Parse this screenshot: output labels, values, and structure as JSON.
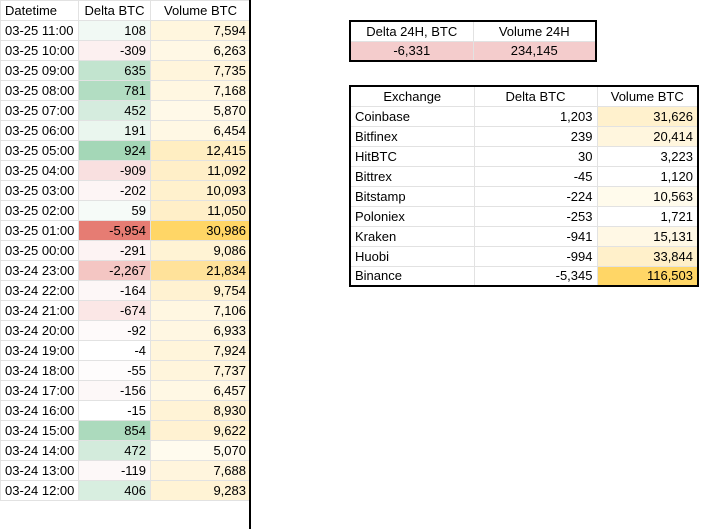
{
  "main": {
    "headers": [
      "Datetime",
      "Delta BTC",
      "Volume BTC"
    ],
    "rows": [
      {
        "datetime": "03-25 11:00",
        "delta": "108",
        "volume": "7,594",
        "delta_bg": "#f1f9f4",
        "volume_bg": "#fff6de"
      },
      {
        "datetime": "03-25 10:00",
        "delta": "-309",
        "volume": "6,263",
        "delta_bg": "#fcf0f0",
        "volume_bg": "#fff8e5"
      },
      {
        "datetime": "03-25 09:00",
        "delta": "635",
        "volume": "7,735",
        "delta_bg": "#c2e4cf",
        "volume_bg": "#fff5dc"
      },
      {
        "datetime": "03-25 08:00",
        "delta": "781",
        "volume": "7,168",
        "delta_bg": "#b2ddc2",
        "volume_bg": "#fff7e1"
      },
      {
        "datetime": "03-25 07:00",
        "delta": "452",
        "volume": "5,870",
        "delta_bg": "#d5ecde",
        "volume_bg": "#fff9e8"
      },
      {
        "datetime": "03-25 06:00",
        "delta": "191",
        "volume": "6,454",
        "delta_bg": "#eaf6ee",
        "volume_bg": "#fff8e4"
      },
      {
        "datetime": "03-25 05:00",
        "delta": "924",
        "volume": "12,415",
        "delta_bg": "#a4d7b7",
        "volume_bg": "#ffeec2"
      },
      {
        "datetime": "03-25 04:00",
        "delta": "-909",
        "volume": "11,092",
        "delta_bg": "#f9e0e0",
        "volume_bg": "#ffefc8"
      },
      {
        "datetime": "03-25 03:00",
        "delta": "-202",
        "volume": "10,093",
        "delta_bg": "#fdf5f5",
        "volume_bg": "#fff1cd"
      },
      {
        "datetime": "03-25 02:00",
        "delta": "59",
        "volume": "11,050",
        "delta_bg": "#f6fbf8",
        "volume_bg": "#ffefc8"
      },
      {
        "datetime": "03-25 01:00",
        "delta": "-5,954",
        "volume": "30,986",
        "delta_bg": "#e67c73",
        "volume_bg": "#ffd666"
      },
      {
        "datetime": "03-25 00:00",
        "delta": "-291",
        "volume": "9,086",
        "delta_bg": "#fdf3f3",
        "volume_bg": "#fff3d4"
      },
      {
        "datetime": "03-24 23:00",
        "delta": "-2,267",
        "volume": "21,834",
        "delta_bg": "#f4c6c3",
        "volume_bg": "#ffe29a"
      },
      {
        "datetime": "03-24 22:00",
        "delta": "-164",
        "volume": "9,754",
        "delta_bg": "#fdf7f7",
        "volume_bg": "#fff2d1"
      },
      {
        "datetime": "03-24 21:00",
        "delta": "-674",
        "volume": "7,106",
        "delta_bg": "#fbe7e6",
        "volume_bg": "#fff7e1"
      },
      {
        "datetime": "03-24 20:00",
        "delta": "-92",
        "volume": "6,933",
        "delta_bg": "#fefafa",
        "volume_bg": "#fff7e2"
      },
      {
        "datetime": "03-24 19:00",
        "delta": "-4",
        "volume": "7,924",
        "delta_bg": "#ffffff",
        "volume_bg": "#fff5db"
      },
      {
        "datetime": "03-24 18:00",
        "delta": "-55",
        "volume": "7,737",
        "delta_bg": "#fefcfc",
        "volume_bg": "#fff5dc"
      },
      {
        "datetime": "03-24 17:00",
        "delta": "-156",
        "volume": "6,457",
        "delta_bg": "#fdf8f8",
        "volume_bg": "#fff8e4"
      },
      {
        "datetime": "03-24 16:00",
        "delta": "-15",
        "volume": "8,930",
        "delta_bg": "#ffffff",
        "volume_bg": "#fff3d6"
      },
      {
        "datetime": "03-24 15:00",
        "delta": "854",
        "volume": "9,622",
        "delta_bg": "#acdabd",
        "volume_bg": "#fff2d2"
      },
      {
        "datetime": "03-24 14:00",
        "delta": "472",
        "volume": "5,070",
        "delta_bg": "#d3ebdc",
        "volume_bg": "#fffbee"
      },
      {
        "datetime": "03-24 13:00",
        "delta": "-119",
        "volume": "7,688",
        "delta_bg": "#fdf8f8",
        "volume_bg": "#fff5dd"
      },
      {
        "datetime": "03-24 12:00",
        "delta": "406",
        "volume": "9,283",
        "delta_bg": "#d8eee0",
        "volume_bg": "#fff3d5"
      }
    ]
  },
  "summary": {
    "headers": [
      "Delta 24H, BTC",
      "Volume 24H"
    ],
    "delta": "-6,331",
    "volume": "234,145",
    "bg": "#f4cccc"
  },
  "exchanges": {
    "headers": [
      "Exchange",
      "Delta BTC",
      "Volume BTC"
    ],
    "rows": [
      {
        "name": "Coinbase",
        "delta": "1,203",
        "volume": "31,626",
        "volume_bg": "#fff1cd"
      },
      {
        "name": "Bitfinex",
        "delta": "239",
        "volume": "20,414",
        "volume_bg": "#fff6de"
      },
      {
        "name": "HitBTC",
        "delta": "30",
        "volume": "3,223",
        "volume_bg": "#ffffff"
      },
      {
        "name": "Bittrex",
        "delta": "-45",
        "volume": "1,120",
        "volume_bg": "#ffffff"
      },
      {
        "name": "Bitstamp",
        "delta": "-224",
        "volume": "10,563",
        "volume_bg": "#fffbec"
      },
      {
        "name": "Poloniex",
        "delta": "-253",
        "volume": "1,721",
        "volume_bg": "#ffffff"
      },
      {
        "name": "Kraken",
        "delta": "-941",
        "volume": "15,131",
        "volume_bg": "#fff8e5"
      },
      {
        "name": "Huobi",
        "delta": "-994",
        "volume": "33,844",
        "volume_bg": "#fff0ca"
      },
      {
        "name": "Binance",
        "delta": "-5,345",
        "volume": "116,503",
        "volume_bg": "#ffd666"
      }
    ]
  }
}
